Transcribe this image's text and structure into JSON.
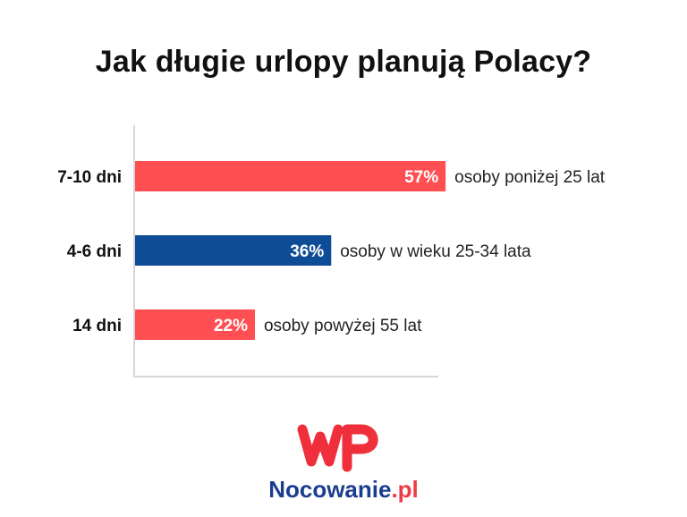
{
  "chart_data": {
    "type": "bar",
    "orientation": "horizontal",
    "title": "Jak długie urlopy planują Polacy?",
    "categories": [
      "7-10 dni",
      "4-6 dni",
      "14 dni"
    ],
    "values": [
      57,
      36,
      22
    ],
    "value_labels": [
      "57%",
      "36%",
      "22%"
    ],
    "annotations": [
      "osoby poniżej 25 lat",
      "osoby w wieku 25-34 lata",
      "osoby powyżej 55 lat"
    ],
    "colors": [
      "#ff4f52",
      "#0f4c96",
      "#ff4f52"
    ],
    "xlim": [
      0,
      100
    ],
    "grid": false,
    "legend": "none"
  },
  "brand": {
    "name": "Nocowanie",
    "tld": ".pl",
    "logo_text": "WP",
    "logo_color": "#ef2f3c"
  }
}
